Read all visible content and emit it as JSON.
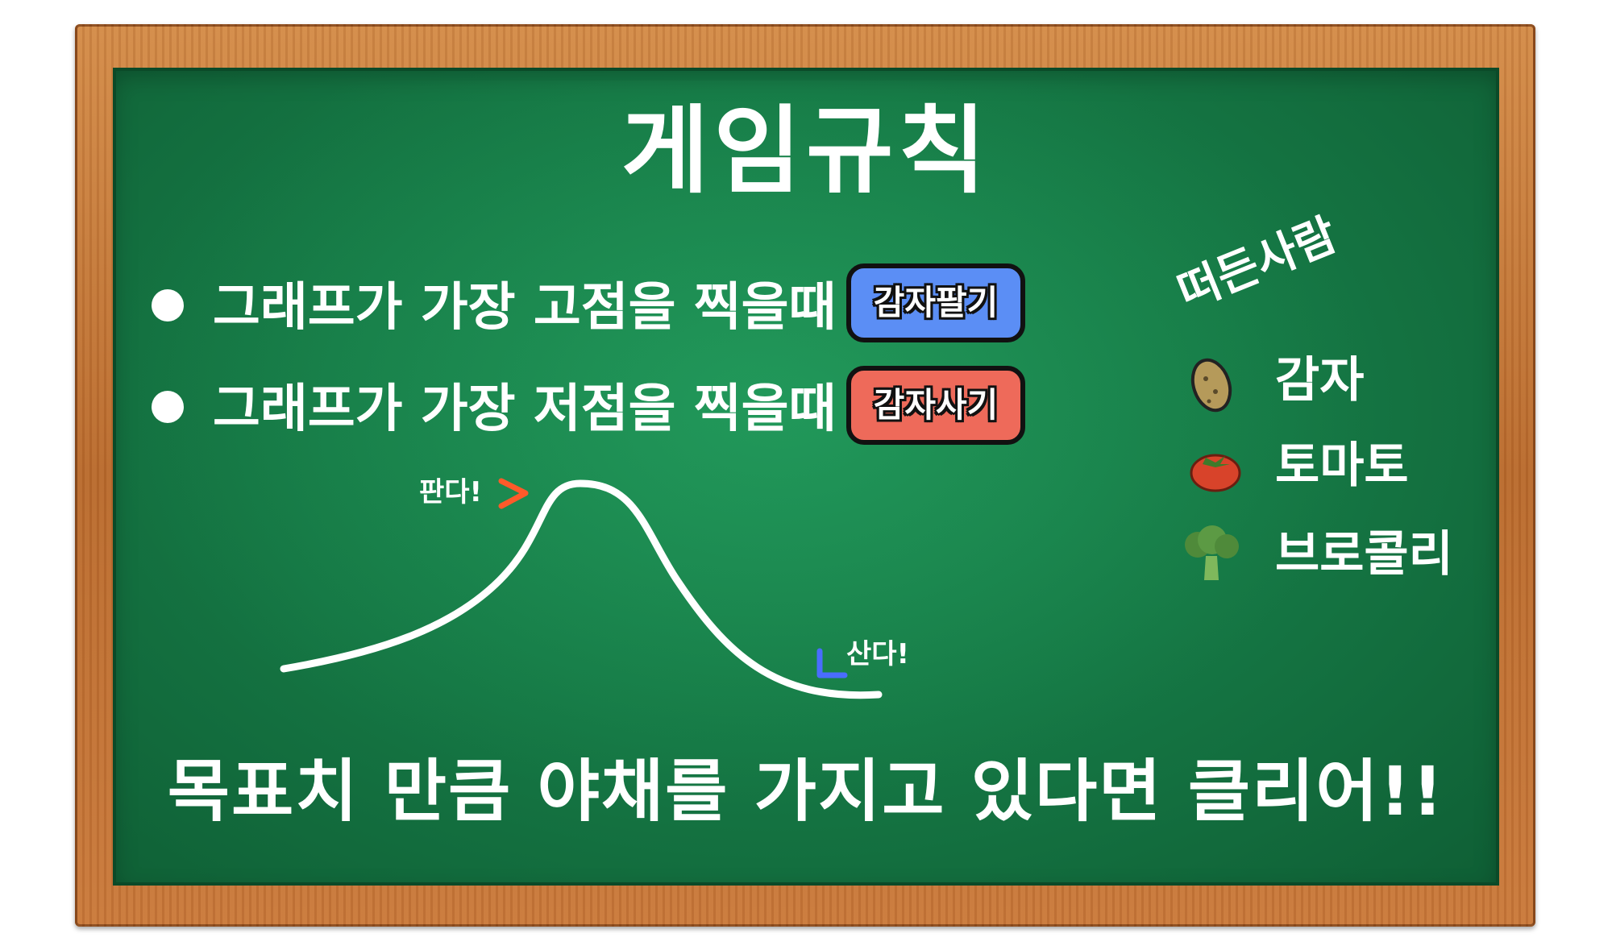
{
  "title": "게임규칙",
  "rules": [
    {
      "text": "그래프가 가장 고점을 찍을때",
      "badge": "감자팔기",
      "badge_color": "#5b8ef5"
    },
    {
      "text": "그래프가 가장 저점을 찍을때",
      "badge": "감자사기",
      "badge_color": "#ee6a5a"
    }
  ],
  "graph": {
    "sell_note": "판다!",
    "buy_note": "산다!",
    "sell_marker_color": "#ff5a2a",
    "buy_marker_color": "#4a6cff"
  },
  "sidebar": {
    "title": "떠든사람",
    "items": [
      {
        "icon": "potato-icon",
        "label": "감자"
      },
      {
        "icon": "tomato-icon",
        "label": "토마토"
      },
      {
        "icon": "broccoli-icon",
        "label": "브로콜리"
      }
    ]
  },
  "goal": "목표치 만큼 야채를 가지고 있다면 클리어!!"
}
